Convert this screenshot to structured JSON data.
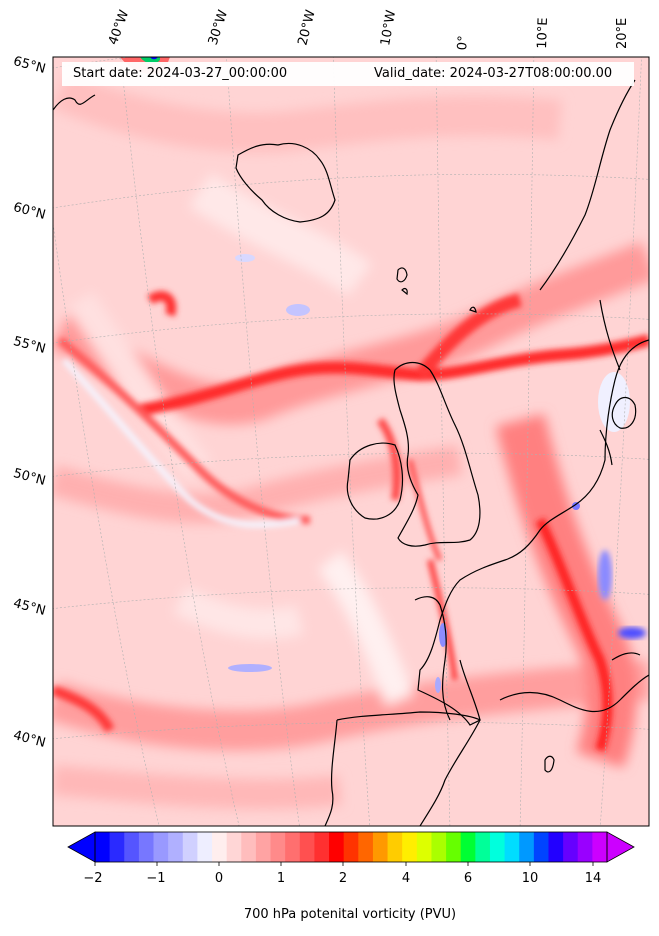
{
  "map": {
    "start_date_label": "Start date: 2024-03-27_00:00:00",
    "valid_date_label": "Valid_date: 2024-03-27T08:00:00.00",
    "longitude_labels": [
      "40°W",
      "30°W",
      "20°W",
      "10°W",
      "0°",
      "10°E",
      "20°E"
    ],
    "latitude_labels": [
      "65°N",
      "60°N",
      "55°N",
      "50°N",
      "45°N",
      "40°N"
    ],
    "projection": "polar stereographic (conic-like, rotated meridians)",
    "region": "North Atlantic and Western Europe",
    "field_colors": {
      "land_coast": "#000000",
      "grid": "#b0b0b0"
    }
  },
  "colorbar": {
    "title": "700 hPa potenital vorticity (PVU)",
    "tick_labels": [
      "−2",
      "−1",
      "0",
      "1",
      "2",
      "4",
      "6",
      "10",
      "14"
    ],
    "levels": [
      -2,
      -1.75,
      -1.5,
      -1.25,
      -1,
      -0.75,
      -0.5,
      -0.25,
      0,
      0.25,
      0.5,
      0.75,
      1,
      1.25,
      1.5,
      1.75,
      2,
      2.5,
      3,
      3.5,
      4,
      4.5,
      5,
      5.5,
      6,
      7,
      8,
      9,
      10,
      11,
      12,
      13,
      14,
      15,
      16,
      17
    ],
    "colors": [
      "#0000ff",
      "#2a2aff",
      "#5555ff",
      "#7777ff",
      "#9999ff",
      "#b0b0ff",
      "#d0d0ff",
      "#eeeeff",
      "#ffeeee",
      "#ffd6d6",
      "#ffbdbd",
      "#ffa3a3",
      "#ff8a8a",
      "#ff6f6f",
      "#ff5050",
      "#ff3030",
      "#ff0000",
      "#ff3300",
      "#ff6600",
      "#ff9900",
      "#ffcc00",
      "#ffee00",
      "#ddff00",
      "#aaff00",
      "#66ff00",
      "#00ff33",
      "#00ff99",
      "#00ffdd",
      "#00ddff",
      "#0099ff",
      "#0044ff",
      "#2200ff",
      "#6600ff",
      "#9900ff",
      "#cc00ff"
    ],
    "extend": "both"
  }
}
